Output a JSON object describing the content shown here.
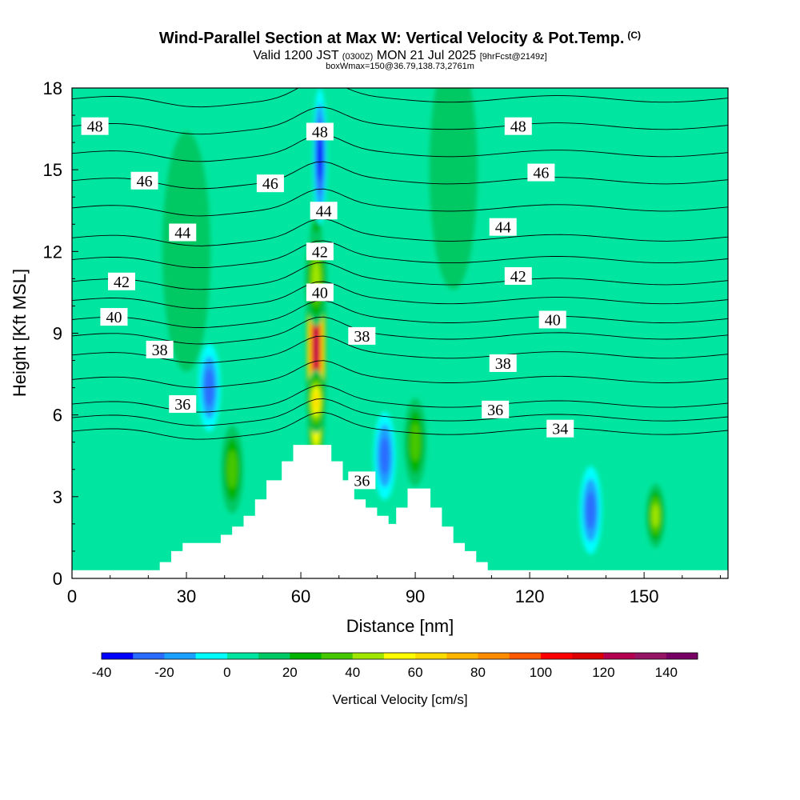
{
  "header": {
    "title": "Wind-Parallel Section at Max W: Vertical Velocity & Pot.Temp.",
    "title_mark": "(C)",
    "valid_prefix": "Valid 1200 JST",
    "valid_utc": "(0300Z)",
    "valid_date": "MON 21 Jul 2025",
    "forecast": "[9hrFcst@2149z]",
    "box_info": "boxWmax=150@36.79,138.73,2761m"
  },
  "chart_data": {
    "type": "heatmap",
    "xlabel": "Distance [nm]",
    "ylabel": "Height [Kft MSL]",
    "xlim": [
      0,
      172
    ],
    "ylim": [
      0,
      18
    ],
    "x_ticks": [
      "0",
      "30",
      "60",
      "90",
      "120",
      "150"
    ],
    "y_ticks": [
      "0",
      "3",
      "6",
      "9",
      "12",
      "15",
      "18"
    ],
    "colorbar": {
      "label": "Vertical Velocity [cm/s]",
      "ticks": [
        "-40",
        "-20",
        "0",
        "20",
        "40",
        "60",
        "80",
        "100",
        "120",
        "140"
      ],
      "bins": [
        -40,
        -30,
        -20,
        -10,
        0,
        10,
        20,
        30,
        40,
        50,
        60,
        70,
        80,
        90,
        100,
        110,
        120,
        130,
        140,
        150
      ],
      "colors": [
        "#0000ff",
        "#2a6cff",
        "#1aa0ff",
        "#00ffff",
        "#00e6a0",
        "#00c864",
        "#00b400",
        "#46c800",
        "#a0e600",
        "#ffff00",
        "#ffdc00",
        "#ffb400",
        "#ff8c00",
        "#ff5a00",
        "#ff0000",
        "#dc0000",
        "#b40050",
        "#961464",
        "#780064"
      ]
    },
    "background_velocity": 0,
    "velocity_features": [
      {
        "x": 64,
        "y": 8.5,
        "value": 120
      },
      {
        "x": 64,
        "y": 11,
        "value": 40
      },
      {
        "x": 64,
        "y": 6.5,
        "value": 60
      },
      {
        "x": 65,
        "y": 15.5,
        "value": -40
      },
      {
        "x": 36,
        "y": 7,
        "value": -30
      },
      {
        "x": 82,
        "y": 4.5,
        "value": -30
      },
      {
        "x": 136,
        "y": 2.5,
        "value": -30
      },
      {
        "x": 153,
        "y": 2.3,
        "value": 40
      },
      {
        "x": 42,
        "y": 4,
        "value": 30
      },
      {
        "x": 90,
        "y": 5,
        "value": 30
      },
      {
        "x": 100,
        "y": 15,
        "value": 10
      },
      {
        "x": 30,
        "y": 12,
        "value": 10
      }
    ],
    "theta_labels": [
      {
        "value": "48",
        "x": 6,
        "y": 16.6
      },
      {
        "value": "48",
        "x": 65,
        "y": 16.4
      },
      {
        "value": "48",
        "x": 117,
        "y": 16.6
      },
      {
        "value": "46",
        "x": 19,
        "y": 14.6
      },
      {
        "value": "46",
        "x": 52,
        "y": 14.5
      },
      {
        "value": "46",
        "x": 123,
        "y": 14.9
      },
      {
        "value": "44",
        "x": 29,
        "y": 12.7
      },
      {
        "value": "44",
        "x": 66,
        "y": 13.5
      },
      {
        "value": "44",
        "x": 113,
        "y": 12.9
      },
      {
        "value": "42",
        "x": 13,
        "y": 10.9
      },
      {
        "value": "42",
        "x": 65,
        "y": 12
      },
      {
        "value": "42",
        "x": 117,
        "y": 11.1
      },
      {
        "value": "40",
        "x": 11,
        "y": 9.6
      },
      {
        "value": "40",
        "x": 65,
        "y": 10.5
      },
      {
        "value": "40",
        "x": 126,
        "y": 9.5
      },
      {
        "value": "38",
        "x": 23,
        "y": 8.4
      },
      {
        "value": "38",
        "x": 76,
        "y": 8.9
      },
      {
        "value": "38",
        "x": 113,
        "y": 7.9
      },
      {
        "value": "36",
        "x": 29,
        "y": 6.4
      },
      {
        "value": "36",
        "x": 111,
        "y": 6.2
      },
      {
        "value": "36",
        "x": 76,
        "y": 3.6
      },
      {
        "value": "34",
        "x": 128,
        "y": 5.5
      }
    ],
    "terrain": [
      [
        0,
        0.3
      ],
      [
        23,
        0.3
      ],
      [
        23,
        0.6
      ],
      [
        26,
        0.6
      ],
      [
        26,
        1.0
      ],
      [
        29,
        1.0
      ],
      [
        29,
        1.3
      ],
      [
        39,
        1.3
      ],
      [
        39,
        1.6
      ],
      [
        42,
        1.6
      ],
      [
        42,
        1.9
      ],
      [
        45,
        1.9
      ],
      [
        45,
        2.3
      ],
      [
        48,
        2.3
      ],
      [
        48,
        2.9
      ],
      [
        51,
        2.9
      ],
      [
        51,
        3.6
      ],
      [
        55,
        3.6
      ],
      [
        55,
        4.3
      ],
      [
        58,
        4.3
      ],
      [
        58,
        4.9
      ],
      [
        68,
        4.9
      ],
      [
        68,
        4.3
      ],
      [
        71,
        4.3
      ],
      [
        71,
        3.6
      ],
      [
        74,
        3.6
      ],
      [
        74,
        2.9
      ],
      [
        77,
        2.9
      ],
      [
        77,
        2.6
      ],
      [
        80,
        2.6
      ],
      [
        80,
        2.3
      ],
      [
        83,
        2.3
      ],
      [
        83,
        2.0
      ],
      [
        85,
        2.0
      ],
      [
        85,
        2.6
      ],
      [
        88,
        2.6
      ],
      [
        88,
        3.3
      ],
      [
        94,
        3.3
      ],
      [
        94,
        2.6
      ],
      [
        97,
        2.6
      ],
      [
        97,
        1.9
      ],
      [
        100,
        1.9
      ],
      [
        100,
        1.3
      ],
      [
        103,
        1.3
      ],
      [
        103,
        1.0
      ],
      [
        106,
        1.0
      ],
      [
        106,
        0.6
      ],
      [
        109,
        0.6
      ],
      [
        109,
        0.3
      ],
      [
        172,
        0.3
      ]
    ]
  }
}
